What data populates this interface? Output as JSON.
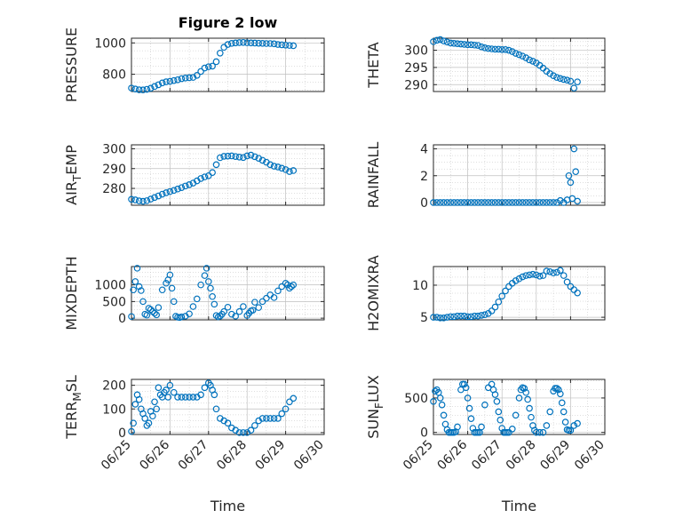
{
  "figure": {
    "title": "Figure 2 low",
    "xlabel": "Time"
  },
  "colors": {
    "marker": "#0072BD",
    "axes": "#262626",
    "grid": "#bfbfbf"
  },
  "chart_data": [
    {
      "type": "scatter",
      "title": "Figure 2 low",
      "ylabel": "PRESSURE",
      "xlabel": "",
      "xlim": [
        0,
        5
      ],
      "ylim": [
        690,
        1030
      ],
      "yticks": [
        800,
        1000
      ],
      "xticklabels": [],
      "grid": true,
      "x": [
        0.0,
        0.1,
        0.2,
        0.3,
        0.4,
        0.5,
        0.6,
        0.7,
        0.8,
        0.9,
        1.0,
        1.1,
        1.2,
        1.3,
        1.4,
        1.5,
        1.6,
        1.7,
        1.8,
        1.9,
        2.0,
        2.1,
        2.2,
        2.3,
        2.4,
        2.5,
        2.6,
        2.7,
        2.8,
        2.9,
        3.0,
        3.1,
        3.2,
        3.3,
        3.4,
        3.5,
        3.6,
        3.7,
        3.8,
        3.9,
        4.0,
        4.1,
        4.2
      ],
      "y": [
        712,
        706,
        701,
        700,
        704,
        711,
        722,
        733,
        745,
        752,
        755,
        760,
        765,
        772,
        776,
        778,
        780,
        793,
        818,
        840,
        848,
        852,
        880,
        935,
        972,
        990,
        997,
        1000,
        1002,
        1003,
        1001,
        1000,
        999,
        998,
        997,
        996,
        996,
        994,
        990,
        988,
        986,
        984,
        982
      ]
    },
    {
      "type": "scatter",
      "ylabel": "THETA",
      "xlabel": "",
      "xlim": [
        0,
        5
      ],
      "ylim": [
        288,
        303.5
      ],
      "yticks": [
        290,
        295,
        300
      ],
      "xticklabels": [],
      "grid": true,
      "x": [
        0.0,
        0.1,
        0.2,
        0.3,
        0.4,
        0.5,
        0.6,
        0.7,
        0.8,
        0.9,
        1.0,
        1.1,
        1.2,
        1.3,
        1.4,
        1.5,
        1.6,
        1.7,
        1.8,
        1.9,
        2.0,
        2.1,
        2.2,
        2.3,
        2.4,
        2.5,
        2.6,
        2.7,
        2.8,
        2.9,
        3.0,
        3.1,
        3.2,
        3.3,
        3.4,
        3.5,
        3.6,
        3.7,
        3.8,
        3.9,
        4.0,
        4.1,
        4.2
      ],
      "y": [
        302.5,
        302.9,
        303.1,
        302.7,
        302.4,
        302.1,
        302.0,
        301.9,
        301.8,
        301.7,
        301.6,
        301.6,
        301.5,
        301.4,
        301.0,
        300.7,
        300.5,
        300.4,
        300.3,
        300.3,
        300.2,
        300.2,
        300.0,
        299.6,
        299.1,
        298.7,
        298.3,
        297.8,
        297.2,
        296.8,
        296.3,
        295.6,
        294.8,
        293.9,
        293.2,
        292.6,
        292.1,
        291.8,
        291.5,
        291.3,
        291.0,
        289.0,
        290.8
      ]
    },
    {
      "type": "scatter",
      "ylabel": "AIR_TEMP",
      "xlabel": "",
      "xlim": [
        0,
        5
      ],
      "ylim": [
        271.5,
        302
      ],
      "yticks": [
        280,
        290,
        300
      ],
      "xticklabels": [],
      "grid": true,
      "x": [
        0.0,
        0.1,
        0.2,
        0.3,
        0.4,
        0.5,
        0.6,
        0.7,
        0.8,
        0.9,
        1.0,
        1.1,
        1.2,
        1.3,
        1.4,
        1.5,
        1.6,
        1.7,
        1.8,
        1.9,
        2.0,
        2.1,
        2.2,
        2.3,
        2.4,
        2.5,
        2.6,
        2.7,
        2.8,
        2.9,
        3.0,
        3.1,
        3.2,
        3.3,
        3.4,
        3.5,
        3.6,
        3.7,
        3.8,
        3.9,
        4.0,
        4.1,
        4.2
      ],
      "y": [
        274.5,
        274.2,
        273.7,
        273.5,
        273.8,
        274.6,
        275.4,
        276.2,
        277.1,
        277.8,
        278.4,
        279.0,
        279.7,
        280.4,
        281.2,
        281.9,
        282.7,
        283.8,
        285.0,
        285.8,
        286.4,
        288.0,
        292.0,
        295.5,
        296.2,
        296.3,
        296.4,
        296.1,
        295.8,
        295.6,
        296.4,
        296.8,
        296.0,
        295.2,
        294.2,
        293.2,
        292.0,
        291.2,
        290.8,
        290.2,
        289.5,
        288.5,
        289.0
      ]
    },
    {
      "type": "scatter",
      "ylabel": "RAINFALL",
      "xlabel": "",
      "xlim": [
        0,
        5
      ],
      "ylim": [
        -0.2,
        4.3
      ],
      "yticks": [
        0,
        2,
        4
      ],
      "xticklabels": [],
      "grid": true,
      "x": [
        0.0,
        0.1,
        0.2,
        0.3,
        0.4,
        0.5,
        0.6,
        0.7,
        0.8,
        0.9,
        1.0,
        1.1,
        1.2,
        1.3,
        1.4,
        1.5,
        1.6,
        1.7,
        1.8,
        1.9,
        2.0,
        2.1,
        2.2,
        2.3,
        2.4,
        2.5,
        2.6,
        2.7,
        2.8,
        2.9,
        3.0,
        3.1,
        3.2,
        3.3,
        3.4,
        3.5,
        3.6,
        3.7,
        3.8,
        3.9,
        3.95,
        4.0,
        4.05,
        4.1,
        4.15,
        4.2
      ],
      "y": [
        0,
        0,
        0,
        0,
        0,
        0,
        0,
        0,
        0,
        0,
        0,
        0,
        0,
        0,
        0,
        0,
        0,
        0,
        0,
        0,
        0,
        0,
        0,
        0,
        0,
        0,
        0,
        0,
        0,
        0,
        0,
        0,
        0,
        0,
        0,
        0,
        0,
        0.15,
        0,
        0.2,
        2.0,
        1.5,
        0.3,
        4.0,
        2.3,
        0.1
      ]
    },
    {
      "type": "scatter",
      "ylabel": "MIXDEPTH",
      "xlabel": "",
      "xlim": [
        0,
        5
      ],
      "ylim": [
        -50,
        1550
      ],
      "yticks": [
        0,
        500,
        1000
      ],
      "xticklabels": [],
      "grid": true,
      "x": [
        0.0,
        0.05,
        0.1,
        0.15,
        0.2,
        0.25,
        0.3,
        0.35,
        0.4,
        0.45,
        0.5,
        0.55,
        0.6,
        0.65,
        0.7,
        0.8,
        0.9,
        0.95,
        1.0,
        1.05,
        1.1,
        1.15,
        1.2,
        1.25,
        1.3,
        1.4,
        1.5,
        1.6,
        1.7,
        1.8,
        1.9,
        1.95,
        2.0,
        2.05,
        2.1,
        2.15,
        2.2,
        2.25,
        2.3,
        2.35,
        2.4,
        2.5,
        2.6,
        2.7,
        2.8,
        2.9,
        3.0,
        3.05,
        3.1,
        3.15,
        3.2,
        3.3,
        3.4,
        3.5,
        3.6,
        3.7,
        3.8,
        3.9,
        4.0,
        4.05,
        4.1,
        4.15,
        4.2
      ],
      "y": [
        50,
        850,
        1100,
        1500,
        950,
        830,
        500,
        120,
        90,
        300,
        260,
        200,
        150,
        100,
        320,
        850,
        1050,
        1150,
        1300,
        900,
        500,
        60,
        30,
        20,
        40,
        60,
        130,
        350,
        580,
        1000,
        1280,
        1500,
        1100,
        900,
        650,
        420,
        80,
        40,
        60,
        120,
        200,
        330,
        120,
        60,
        200,
        350,
        80,
        150,
        220,
        240,
        480,
        320,
        500,
        600,
        700,
        620,
        820,
        950,
        1050,
        1000,
        900,
        950,
        1000
      ]
    },
    {
      "type": "scatter",
      "ylabel": "H2OMIXRA",
      "xlabel": "",
      "xlim": [
        0,
        5
      ],
      "ylim": [
        4.6,
        12.9
      ],
      "yticks": [
        5,
        10
      ],
      "xticklabels": [],
      "grid": true,
      "x": [
        0.0,
        0.1,
        0.2,
        0.3,
        0.4,
        0.5,
        0.6,
        0.7,
        0.8,
        0.9,
        1.0,
        1.1,
        1.2,
        1.3,
        1.4,
        1.5,
        1.6,
        1.7,
        1.8,
        1.9,
        2.0,
        2.1,
        2.2,
        2.3,
        2.4,
        2.5,
        2.6,
        2.7,
        2.8,
        2.9,
        3.0,
        3.1,
        3.2,
        3.3,
        3.4,
        3.5,
        3.6,
        3.7,
        3.8,
        3.9,
        4.0,
        4.1,
        4.2
      ],
      "y": [
        5.0,
        5.0,
        4.9,
        4.9,
        5.0,
        5.1,
        5.1,
        5.2,
        5.2,
        5.2,
        5.1,
        5.1,
        5.2,
        5.2,
        5.3,
        5.4,
        5.6,
        6.0,
        6.6,
        7.4,
        8.3,
        9.1,
        9.8,
        10.3,
        10.7,
        11.0,
        11.3,
        11.5,
        11.6,
        11.7,
        11.6,
        11.4,
        11.5,
        12.2,
        12.1,
        11.9,
        12.0,
        12.3,
        11.5,
        10.5,
        9.8,
        9.3,
        8.8
      ]
    },
    {
      "type": "scatter",
      "ylabel": "TERR_MSL",
      "xlabel": "",
      "xlim": [
        0,
        5
      ],
      "ylim": [
        -8,
        225
      ],
      "yticks": [
        0,
        100,
        200
      ],
      "xticks": [
        0,
        1,
        2,
        3,
        4,
        5
      ],
      "xticklabels": [
        "06/25",
        "06/26",
        "06/27",
        "06/28",
        "06/29",
        "06/30"
      ],
      "grid": true,
      "x": [
        0.0,
        0.05,
        0.1,
        0.15,
        0.2,
        0.25,
        0.3,
        0.35,
        0.4,
        0.45,
        0.5,
        0.55,
        0.6,
        0.65,
        0.7,
        0.75,
        0.8,
        0.85,
        0.9,
        0.95,
        1.0,
        1.1,
        1.2,
        1.3,
        1.4,
        1.5,
        1.6,
        1.7,
        1.8,
        1.9,
        2.0,
        2.05,
        2.1,
        2.15,
        2.2,
        2.3,
        2.4,
        2.5,
        2.6,
        2.7,
        2.8,
        2.9,
        3.0,
        3.1,
        3.2,
        3.3,
        3.4,
        3.5,
        3.6,
        3.7,
        3.8,
        3.9,
        4.0,
        4.1,
        4.2
      ],
      "y": [
        5,
        40,
        120,
        160,
        140,
        100,
        80,
        60,
        30,
        40,
        90,
        70,
        130,
        100,
        190,
        160,
        150,
        170,
        180,
        150,
        200,
        170,
        150,
        150,
        150,
        150,
        150,
        150,
        160,
        190,
        210,
        200,
        180,
        160,
        100,
        60,
        50,
        40,
        20,
        10,
        0,
        0,
        0,
        10,
        30,
        50,
        60,
        60,
        60,
        60,
        60,
        80,
        100,
        130,
        145
      ]
    },
    {
      "type": "scatter",
      "ylabel": "SUN_FLUX",
      "xlabel": "",
      "xlim": [
        0,
        5
      ],
      "ylim": [
        -30,
        770
      ],
      "yticks": [
        0,
        500
      ],
      "xticks": [
        0,
        1,
        2,
        3,
        4,
        5
      ],
      "xticklabels": [
        "06/25",
        "06/26",
        "06/27",
        "06/28",
        "06/29",
        "06/30"
      ],
      "grid": true,
      "x": [
        0.0,
        0.05,
        0.1,
        0.15,
        0.2,
        0.25,
        0.3,
        0.35,
        0.4,
        0.45,
        0.5,
        0.55,
        0.6,
        0.65,
        0.7,
        0.8,
        0.85,
        0.9,
        0.95,
        1.0,
        1.05,
        1.1,
        1.15,
        1.2,
        1.25,
        1.3,
        1.35,
        1.4,
        1.5,
        1.6,
        1.7,
        1.75,
        1.8,
        1.85,
        1.9,
        1.95,
        2.0,
        2.05,
        2.1,
        2.15,
        2.2,
        2.3,
        2.4,
        2.5,
        2.55,
        2.6,
        2.65,
        2.7,
        2.75,
        2.8,
        2.85,
        2.9,
        2.95,
        3.0,
        3.1,
        3.2,
        3.3,
        3.4,
        3.5,
        3.55,
        3.6,
        3.65,
        3.7,
        3.75,
        3.8,
        3.85,
        3.9,
        3.95,
        4.0,
        4.1,
        4.2
      ],
      "y": [
        450,
        600,
        620,
        580,
        500,
        400,
        250,
        120,
        40,
        0,
        0,
        0,
        0,
        10,
        80,
        620,
        700,
        700,
        650,
        500,
        350,
        200,
        60,
        0,
        0,
        0,
        0,
        80,
        400,
        650,
        700,
        620,
        550,
        450,
        300,
        180,
        60,
        0,
        0,
        0,
        0,
        50,
        250,
        500,
        620,
        650,
        640,
        580,
        480,
        350,
        220,
        100,
        30,
        0,
        0,
        0,
        100,
        300,
        600,
        640,
        640,
        620,
        560,
        430,
        300,
        150,
        40,
        30,
        30,
        100,
        130
      ]
    }
  ]
}
